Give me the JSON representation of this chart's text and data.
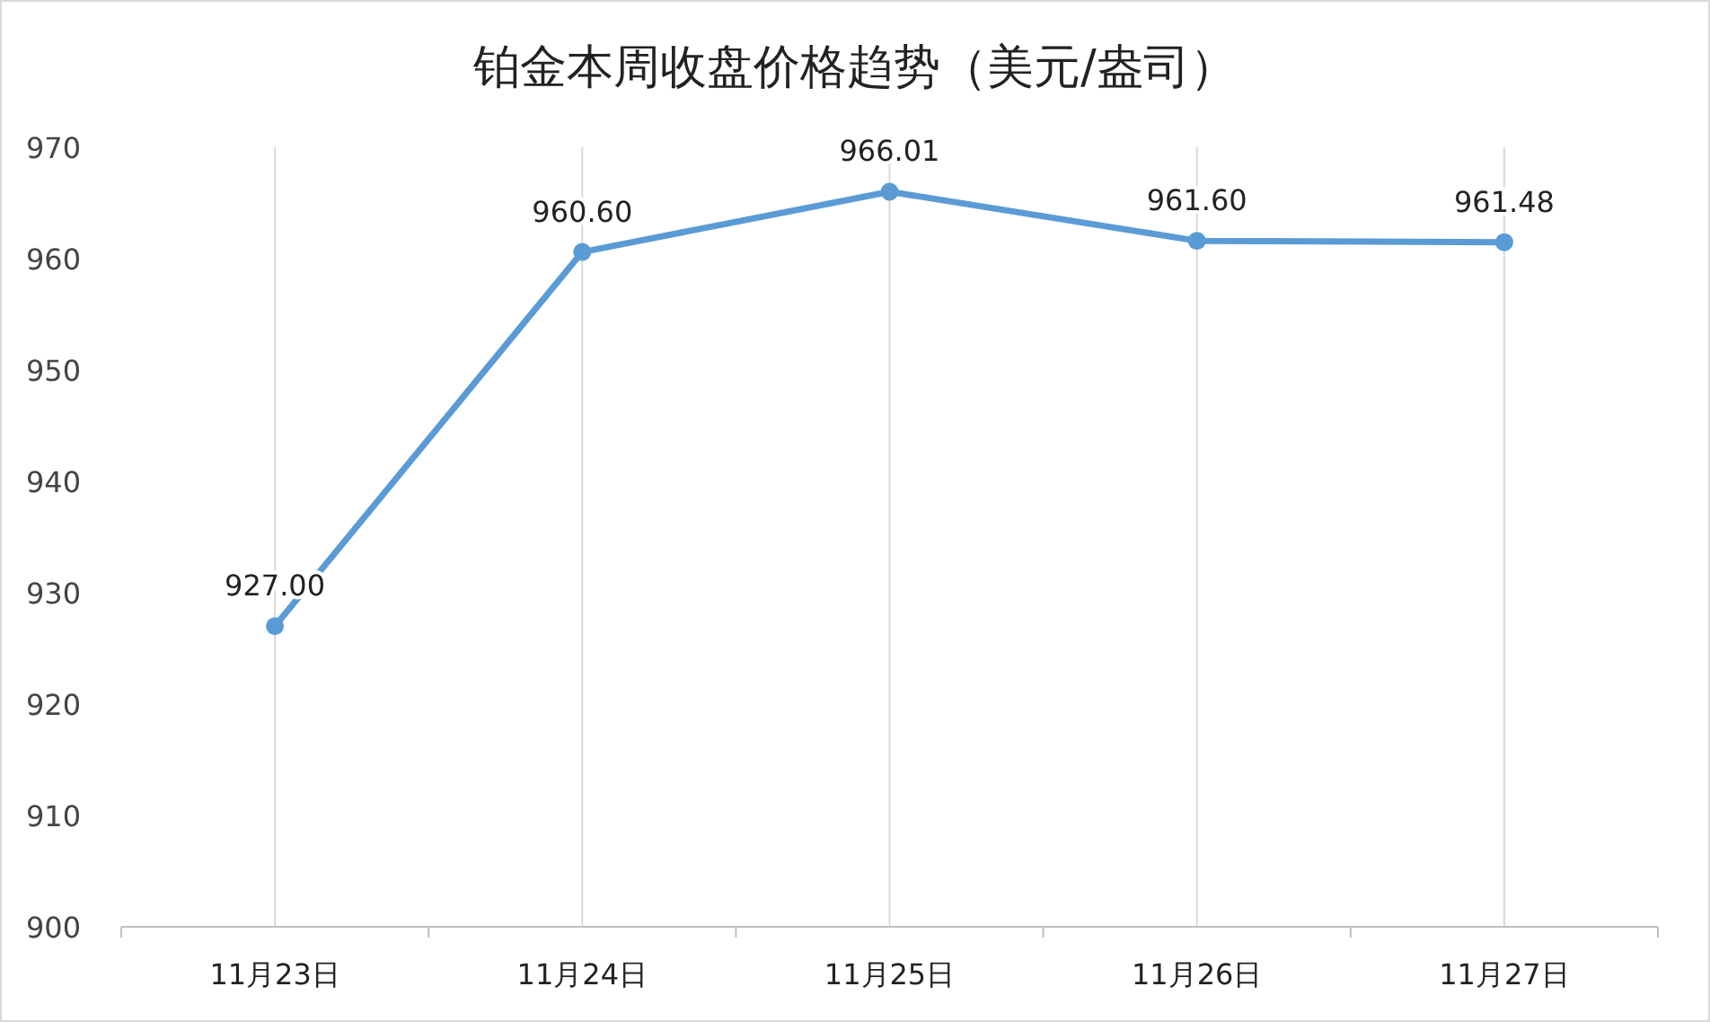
{
  "chart_data": {
    "type": "line",
    "title": "铂金本周收盘价格趋势（美元/盎司）",
    "categories": [
      "11月23日",
      "11月24日",
      "11月25日",
      "11月26日",
      "11月27日"
    ],
    "series": [
      {
        "color": "#5b9bd5",
        "values": [
          927.0,
          960.6,
          966.01,
          961.6,
          961.48
        ],
        "value_labels": [
          "927.00",
          "960.60",
          "966.01",
          "961.60",
          "961.48"
        ]
      }
    ],
    "ylim": [
      900,
      970
    ],
    "yticks": [
      900,
      910,
      920,
      930,
      940,
      950,
      960,
      970
    ],
    "grid": "x",
    "marker": "circle",
    "line_style": "solid"
  }
}
